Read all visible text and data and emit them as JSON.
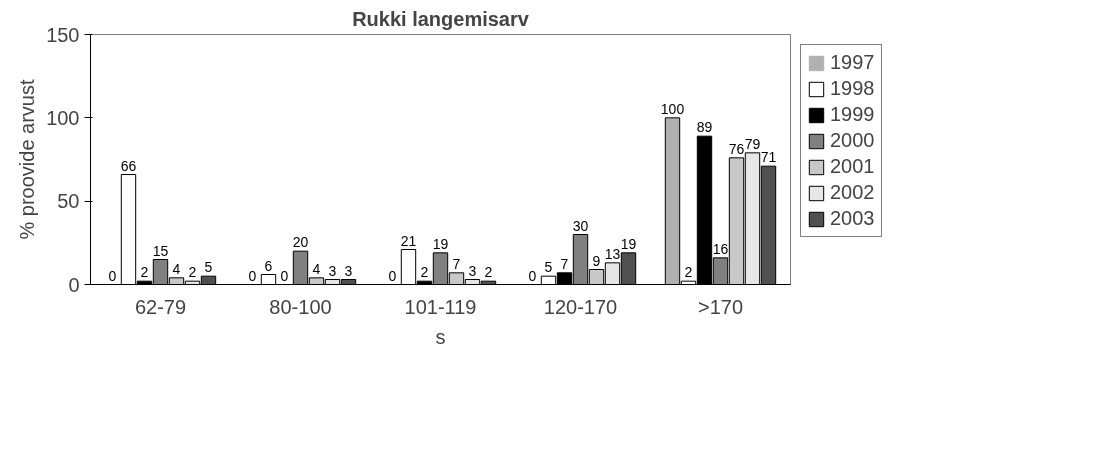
{
  "chart_data": {
    "type": "bar",
    "title": "Rukki langemisarv",
    "xlabel": "s",
    "ylabel": "% proovide arvust",
    "categories": [
      "62-79",
      "80-100",
      "101-119",
      "120-170",
      ">170"
    ],
    "series": [
      {
        "name": "1997",
        "color": "#b0b0b0",
        "values": [
          0,
          0,
          0,
          0,
          100
        ]
      },
      {
        "name": "1998",
        "color": "#ffffff",
        "values": [
          66,
          6,
          21,
          5,
          2
        ]
      },
      {
        "name": "1999",
        "color": "#000000",
        "values": [
          2,
          0,
          2,
          7,
          89
        ]
      },
      {
        "name": "2000",
        "color": "#808080",
        "values": [
          15,
          20,
          19,
          30,
          16
        ]
      },
      {
        "name": "2001",
        "color": "#c8c8c8",
        "values": [
          4,
          4,
          7,
          9,
          76
        ]
      },
      {
        "name": "2002",
        "color": "#e6e6e6",
        "values": [
          2,
          3,
          3,
          13,
          79
        ]
      },
      {
        "name": "2003",
        "color": "#505050",
        "values": [
          5,
          3,
          2,
          19,
          71
        ]
      }
    ],
    "ylim": [
      0,
      150
    ],
    "yticks": [
      0,
      50,
      100,
      150
    ],
    "grid": false,
    "legend": "right",
    "data_labels": true
  }
}
